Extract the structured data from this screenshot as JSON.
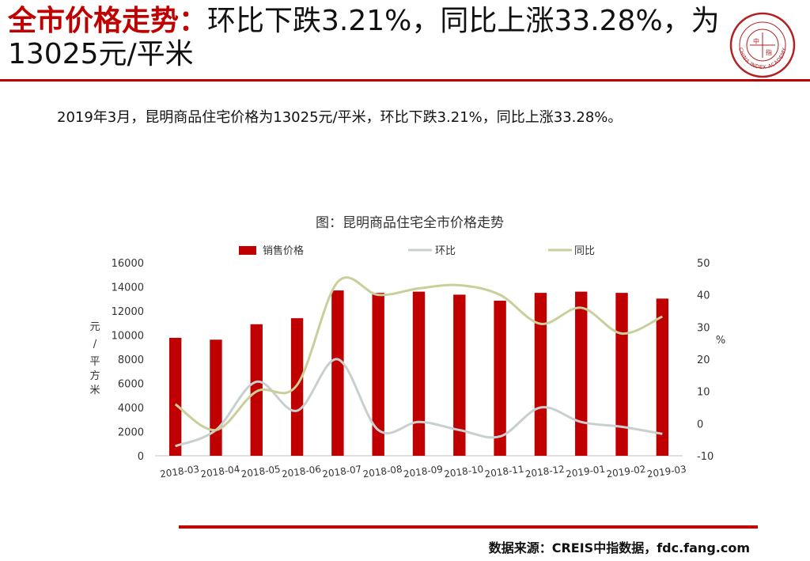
{
  "header": {
    "headline_red": "全市价格走势：",
    "headline_rest": "环比下跌3.21%，同比上涨33.28%，为13025元/平米",
    "logo_text": "CHINA INDEX ACADEMY",
    "logo_center": "中指"
  },
  "summary": "2019年3月，昆明商品住宅价格为13025元/平米，环比下跌3.21%，同比上涨33.28%。",
  "source": "数据来源：CREIS中指数据，fdc.fang.com",
  "colors": {
    "brand_red": "#c00000",
    "mom_line": "#c8cfd0",
    "yoy_line": "#c8cf9a"
  },
  "chart_data": {
    "type": "bar",
    "title": "图：昆明商品住宅全市价格走势",
    "categories": [
      "2018-03",
      "2018-04",
      "2018-05",
      "2018-06",
      "2018-07",
      "2018-08",
      "2018-09",
      "2018-10",
      "2018-11",
      "2018-12",
      "2019-01",
      "2019-02",
      "2019-03"
    ],
    "series": [
      {
        "name": "销售价格",
        "type": "bar",
        "axis": "left",
        "values": [
          9773,
          9620,
          10900,
          11400,
          13700,
          13500,
          13600,
          13350,
          12850,
          13500,
          13600,
          13500,
          13025
        ]
      },
      {
        "name": "环比",
        "type": "line",
        "axis": "right",
        "values": [
          -7,
          -2,
          13,
          4,
          20,
          -2,
          0.5,
          -2,
          -4,
          5,
          0.5,
          -1,
          -3.21
        ]
      },
      {
        "name": "同比",
        "type": "line",
        "axis": "right",
        "values": [
          6,
          -2,
          10,
          12,
          44,
          40,
          42,
          43,
          40,
          31,
          36,
          28,
          33.28
        ]
      }
    ],
    "ylabel_left": "元/平方米",
    "ylabel_right": "%",
    "ylim_left": [
      0,
      16000
    ],
    "ylim_right": [
      -10,
      50
    ],
    "yticks_left": [
      "0",
      "2000",
      "4000",
      "6000",
      "8000",
      "10000",
      "12000",
      "14000",
      "16000"
    ],
    "yticks_right": [
      "-10",
      "0",
      "10",
      "20",
      "30",
      "40",
      "50"
    ],
    "legend_position": "top",
    "grid": false
  }
}
